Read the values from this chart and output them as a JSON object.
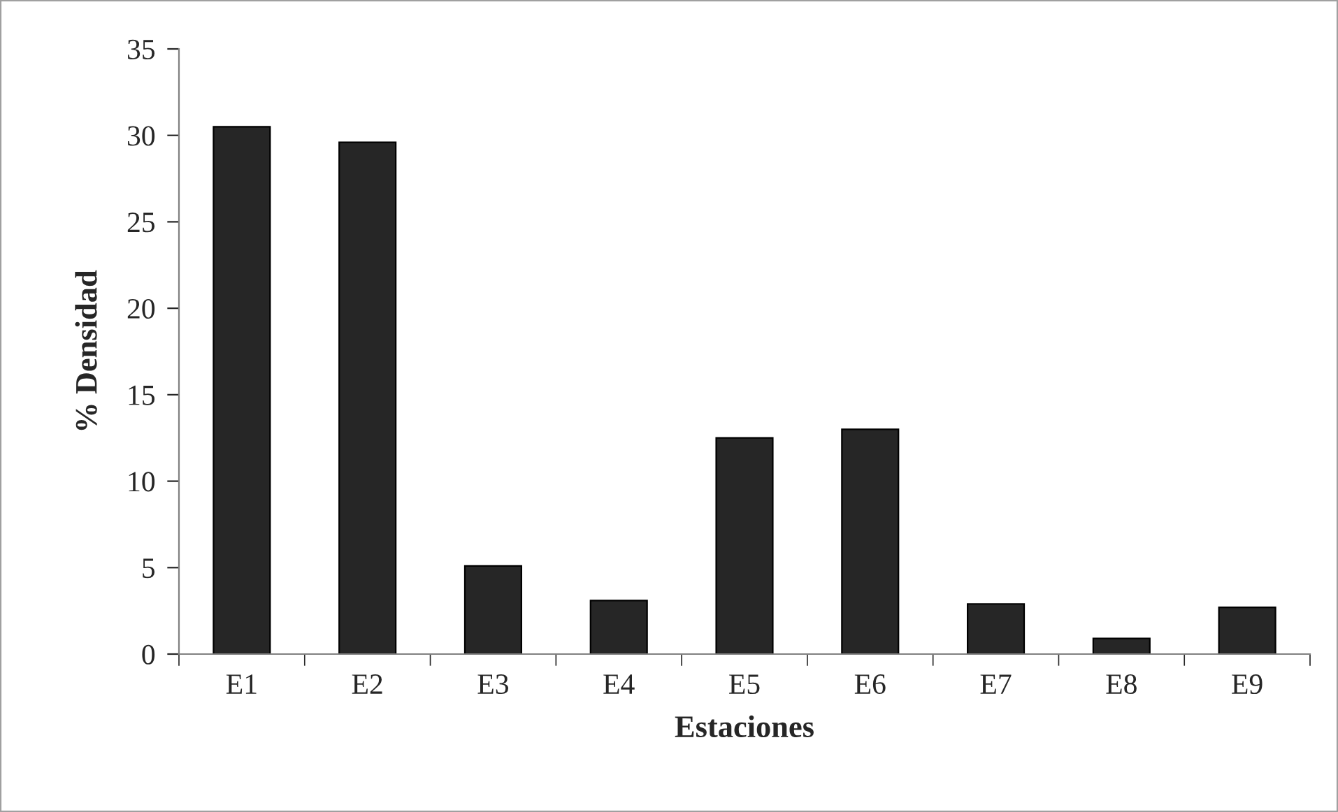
{
  "chart_data": {
    "type": "bar",
    "xlabel": "Estaciones",
    "ylabel": "% Densidad",
    "categories": [
      "E1",
      "E2",
      "E3",
      "E4",
      "E5",
      "E6",
      "E7",
      "E8",
      "E9"
    ],
    "values": [
      30.5,
      29.6,
      5.1,
      3.1,
      12.5,
      13.0,
      2.9,
      0.9,
      2.7
    ],
    "color": "#262626",
    "ylim": [
      0,
      35
    ],
    "yticks": [
      0,
      5,
      10,
      15,
      20,
      25,
      30,
      35
    ],
    "grid": false,
    "legend": false
  }
}
